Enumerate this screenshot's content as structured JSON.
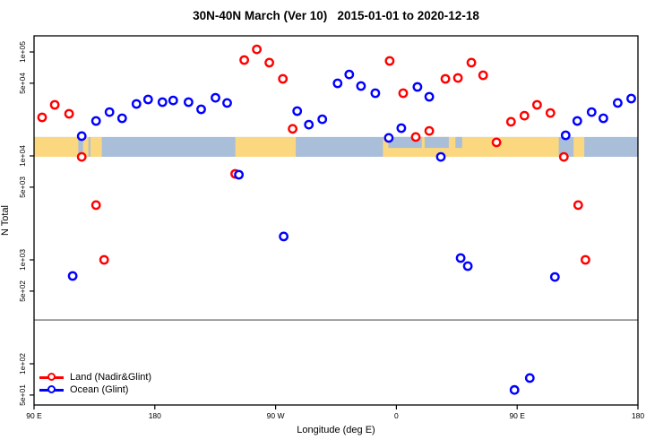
{
  "title": "30N-40N March (Ver 10)   2015-01-01 to 2020-12-18",
  "axes": {
    "x_label": "Longitude (deg E)",
    "y_label": "N Total",
    "x_ticks": [
      {
        "label": "90 E",
        "lon": 90
      },
      {
        "label": "180",
        "lon": 180
      },
      {
        "label": "90 W",
        "lon": 270
      },
      {
        "label": "0",
        "lon": 360
      },
      {
        "label": "90 E",
        "lon": 450
      },
      {
        "label": "180",
        "lon": 540
      }
    ],
    "y_ticks": [
      {
        "label": "1e+05",
        "value": 100000
      },
      {
        "label": "5e+04",
        "value": 50000
      },
      {
        "label": "1e+04",
        "value": 10000
      },
      {
        "label": "5e+03",
        "value": 5000
      },
      {
        "label": "1e+03",
        "value": 1000
      },
      {
        "label": "5e+02",
        "value": 500
      },
      {
        "label": "1e+02",
        "value": 100
      },
      {
        "label": "5e+01",
        "value": 50
      }
    ],
    "x_range_deg_east_extended": [
      90,
      540
    ],
    "y_scale": "log10"
  },
  "legend": {
    "items": [
      {
        "label": "Land (Nadir&Glint)",
        "color": "#ff0000"
      },
      {
        "label": "Ocean (Glint)",
        "color": "#0000ff"
      }
    ]
  },
  "colors": {
    "land_series": "#ff0000",
    "ocean_series": "#0000ff",
    "map_land": "#fbd87f",
    "map_ocean": "#a9bed9",
    "reference_line": "#909090",
    "frame": "#000000",
    "marker_fill": "#ffffff"
  },
  "map_band": {
    "value_range": [
      9800,
      15200
    ],
    "land_segments_lon": [
      [
        90,
        123
      ],
      [
        126.5,
        130.5
      ],
      [
        132,
        140.5
      ],
      [
        240,
        285
      ],
      [
        350,
        481
      ],
      [
        492,
        500
      ]
    ],
    "water_patches_lon_upper": [
      [
        354,
        379
      ],
      [
        381,
        399
      ],
      [
        404,
        409
      ]
    ]
  },
  "reference_line_value": 264,
  "chart_data": {
    "type": "scatter",
    "title": "30N-40N March (Ver 10)   2015-01-01 to 2020-12-18",
    "xlabel": "Longitude (deg E)",
    "ylabel": "N Total",
    "x_unit": "degrees east, extended 90 to 540 (wraps past 180)",
    "xlim": [
      90,
      540
    ],
    "ylim_log": [
      31.6,
      178000
    ],
    "grid": false,
    "legend_position": "bottom-left",
    "series": [
      {
        "name": "Land (Nadir&Glint)",
        "color": "#ff0000",
        "points": [
          [
            96.0,
            23500
          ],
          [
            105.4,
            31000
          ],
          [
            116.1,
            25400
          ],
          [
            125.5,
            9790
          ],
          [
            136.2,
            3360
          ],
          [
            142.2,
            1000
          ],
          [
            239.9,
            6730
          ],
          [
            246.6,
            83600
          ],
          [
            256.0,
            106000
          ],
          [
            265.3,
            78900
          ],
          [
            275.4,
            55100
          ],
          [
            282.7,
            18200
          ],
          [
            355.0,
            82000
          ],
          [
            365.1,
            40100
          ],
          [
            374.4,
            15200
          ],
          [
            384.5,
            17400
          ],
          [
            396.5,
            55100
          ],
          [
            405.9,
            56200
          ],
          [
            415.9,
            78900
          ],
          [
            424.6,
            59700
          ],
          [
            434.6,
            13500
          ],
          [
            445.4,
            21300
          ],
          [
            455.4,
            24400
          ],
          [
            464.8,
            31000
          ],
          [
            474.8,
            25900
          ],
          [
            484.8,
            9790
          ],
          [
            495.5,
            3360
          ],
          [
            500.9,
            1000
          ]
        ]
      },
      {
        "name": "Ocean (Glint)",
        "color": "#0000ff",
        "points": [
          [
            118.8,
            700
          ],
          [
            125.5,
            15500
          ],
          [
            136.2,
            21700
          ],
          [
            146.2,
            26400
          ],
          [
            155.6,
            23000
          ],
          [
            166.3,
            31600
          ],
          [
            175.0,
            34900
          ],
          [
            185.7,
            32900
          ],
          [
            193.7,
            34200
          ],
          [
            205.1,
            32900
          ],
          [
            214.5,
            28100
          ],
          [
            225.2,
            36300
          ],
          [
            233.9,
            32300
          ],
          [
            242.6,
            6590
          ],
          [
            276.0,
            1680
          ],
          [
            286.1,
            27000
          ],
          [
            294.8,
            20000
          ],
          [
            304.8,
            22500
          ],
          [
            316.2,
            49900
          ],
          [
            324.9,
            60800
          ],
          [
            333.6,
            47000
          ],
          [
            344.3,
            40100
          ],
          [
            354.3,
            14900
          ],
          [
            363.7,
            18500
          ],
          [
            375.7,
            46100
          ],
          [
            384.5,
            37100
          ],
          [
            393.1,
            9790
          ],
          [
            407.9,
            1040
          ],
          [
            413.2,
            871
          ],
          [
            448.0,
            56
          ],
          [
            459.4,
            73
          ],
          [
            478.1,
            685
          ],
          [
            486.1,
            15800
          ],
          [
            494.8,
            21700
          ],
          [
            505.5,
            26400
          ],
          [
            514.2,
            23000
          ],
          [
            524.9,
            32300
          ],
          [
            535.0,
            35600
          ]
        ]
      }
    ]
  }
}
